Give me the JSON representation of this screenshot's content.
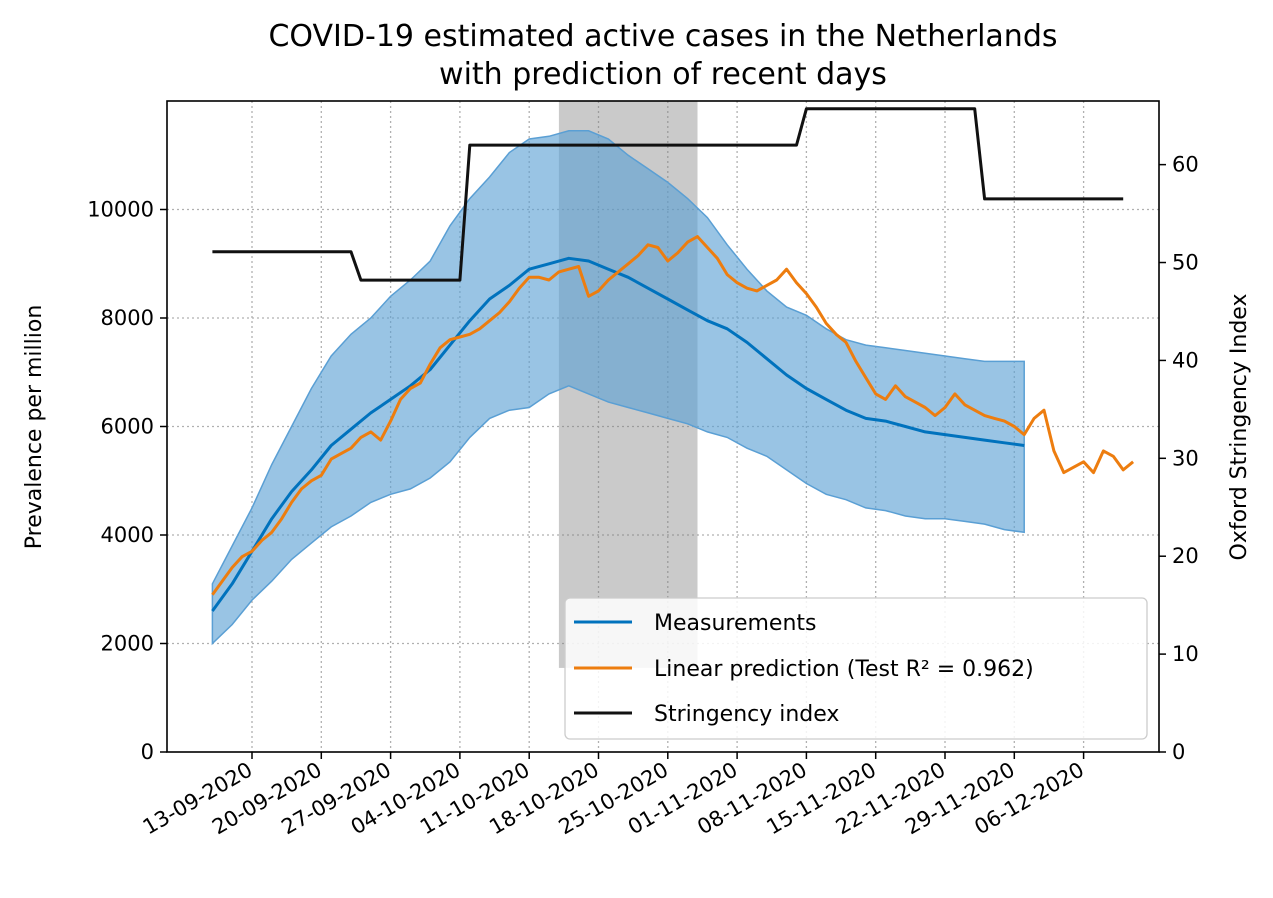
{
  "chart_data": {
    "type": "line",
    "title": "COVID-19 estimated active cases in the Netherlands",
    "subtitle": "with prediction of recent days",
    "ylabel": "Prevalence per million",
    "y2label": "Oxford Stringency Index",
    "xlabel": "",
    "ylim": [
      0,
      12000
    ],
    "y2lim": [
      0,
      66.5
    ],
    "yticks": [
      "0",
      "2000",
      "4000",
      "6000",
      "8000",
      "10000"
    ],
    "y2ticks": [
      "0",
      "10",
      "20",
      "30",
      "40",
      "50",
      "60"
    ],
    "xticks": [
      "13-09-2020",
      "20-09-2020",
      "27-09-2020",
      "04-10-2020",
      "11-10-2020",
      "18-10-2020",
      "25-10-2020",
      "01-11-2020",
      "08-11-2020",
      "15-11-2020",
      "22-11-2020",
      "29-11-2020",
      "06-12-2020"
    ],
    "grid": true,
    "legend_position": "lower-right",
    "shaded_period": {
      "start": "2020-10-14",
      "end": "2020-10-28",
      "color": "#808080"
    },
    "colors": {
      "measurements": "#0072bd",
      "band": "#5a9fd4",
      "prediction": "#ed7d0f",
      "stringency": "#111111"
    },
    "legend": [
      {
        "label": "Measurements",
        "color": "#0072bd"
      },
      {
        "label": "Linear prediction (Test R² = 0.962)",
        "color": "#ed7d0f"
      },
      {
        "label": "Stringency index",
        "color": "#111111"
      }
    ],
    "series": [
      {
        "name": "Measurements",
        "axis": "left",
        "x": [
          "2020-09-09",
          "2020-09-11",
          "2020-09-13",
          "2020-09-15",
          "2020-09-17",
          "2020-09-19",
          "2020-09-21",
          "2020-09-23",
          "2020-09-25",
          "2020-09-27",
          "2020-09-29",
          "2020-10-01",
          "2020-10-03",
          "2020-10-05",
          "2020-10-07",
          "2020-10-09",
          "2020-10-11",
          "2020-10-13",
          "2020-10-15",
          "2020-10-17",
          "2020-10-19",
          "2020-10-21",
          "2020-10-23",
          "2020-10-25",
          "2020-10-27",
          "2020-10-29",
          "2020-10-31",
          "2020-11-02",
          "2020-11-04",
          "2020-11-06",
          "2020-11-08",
          "2020-11-10",
          "2020-11-12",
          "2020-11-14",
          "2020-11-16",
          "2020-11-18",
          "2020-11-20",
          "2020-11-22",
          "2020-11-24",
          "2020-11-26",
          "2020-11-28",
          "2020-11-30"
        ],
        "values": [
          2600,
          3100,
          3700,
          4300,
          4800,
          5200,
          5650,
          5950,
          6250,
          6500,
          6750,
          7050,
          7500,
          7950,
          8350,
          8600,
          8900,
          9000,
          9100,
          9050,
          8900,
          8750,
          8550,
          8350,
          8150,
          7950,
          7800,
          7550,
          7250,
          6950,
          6700,
          6500,
          6300,
          6150,
          6100,
          6000,
          5900,
          5850,
          5800,
          5750,
          5700,
          5650
        ],
        "lower": [
          2000,
          2350,
          2800,
          3150,
          3550,
          3850,
          4150,
          4350,
          4600,
          4750,
          4850,
          5050,
          5350,
          5800,
          6150,
          6300,
          6350,
          6600,
          6750,
          6600,
          6450,
          6350,
          6250,
          6150,
          6050,
          5900,
          5800,
          5600,
          5450,
          5200,
          4950,
          4750,
          4650,
          4500,
          4450,
          4350,
          4300,
          4300,
          4250,
          4200,
          4100,
          4050
        ],
        "upper": [
          3100,
          3800,
          4500,
          5300,
          6000,
          6700,
          7300,
          7700,
          8000,
          8400,
          8700,
          9050,
          9700,
          10200,
          10600,
          11050,
          11300,
          11350,
          11450,
          11450,
          11300,
          11000,
          10750,
          10500,
          10200,
          9850,
          9350,
          8900,
          8500,
          8200,
          8050,
          7800,
          7600,
          7500,
          7450,
          7400,
          7350,
          7300,
          7250,
          7200,
          7200,
          7200
        ]
      },
      {
        "name": "Linear prediction (Test R² = 0.962)",
        "axis": "left",
        "x": [
          "2020-09-09",
          "2020-09-10",
          "2020-09-11",
          "2020-09-12",
          "2020-09-13",
          "2020-09-14",
          "2020-09-15",
          "2020-09-16",
          "2020-09-17",
          "2020-09-18",
          "2020-09-19",
          "2020-09-20",
          "2020-09-21",
          "2020-09-22",
          "2020-09-23",
          "2020-09-24",
          "2020-09-25",
          "2020-09-26",
          "2020-09-27",
          "2020-09-28",
          "2020-09-29",
          "2020-09-30",
          "2020-10-01",
          "2020-10-02",
          "2020-10-03",
          "2020-10-04",
          "2020-10-05",
          "2020-10-06",
          "2020-10-07",
          "2020-10-08",
          "2020-10-09",
          "2020-10-10",
          "2020-10-11",
          "2020-10-12",
          "2020-10-13",
          "2020-10-14",
          "2020-10-15",
          "2020-10-16",
          "2020-10-17",
          "2020-10-18",
          "2020-10-19",
          "2020-10-20",
          "2020-10-21",
          "2020-10-22",
          "2020-10-23",
          "2020-10-24",
          "2020-10-25",
          "2020-10-26",
          "2020-10-27",
          "2020-10-28",
          "2020-10-29",
          "2020-10-30",
          "2020-10-31",
          "2020-11-01",
          "2020-11-02",
          "2020-11-03",
          "2020-11-04",
          "2020-11-05",
          "2020-11-06",
          "2020-11-07",
          "2020-11-08",
          "2020-11-09",
          "2020-11-10",
          "2020-11-11",
          "2020-11-12",
          "2020-11-13",
          "2020-11-14",
          "2020-11-15",
          "2020-11-16",
          "2020-11-17",
          "2020-11-18",
          "2020-11-19",
          "2020-11-20",
          "2020-11-21",
          "2020-11-22",
          "2020-11-23",
          "2020-11-24",
          "2020-11-25",
          "2020-11-26",
          "2020-11-27",
          "2020-11-28",
          "2020-11-29",
          "2020-11-30",
          "2020-12-01",
          "2020-12-02",
          "2020-12-03",
          "2020-12-04",
          "2020-12-05",
          "2020-12-06",
          "2020-12-07",
          "2020-12-08",
          "2020-12-09",
          "2020-12-10",
          "2020-12-11"
        ],
        "values": [
          2900,
          3150,
          3400,
          3600,
          3700,
          3900,
          4050,
          4300,
          4600,
          4850,
          5000,
          5100,
          5400,
          5500,
          5600,
          5800,
          5900,
          5750,
          6100,
          6500,
          6700,
          6800,
          7150,
          7450,
          7600,
          7650,
          7700,
          7800,
          7950,
          8100,
          8300,
          8550,
          8750,
          8750,
          8700,
          8850,
          8900,
          8950,
          8400,
          8500,
          8700,
          8850,
          9000,
          9150,
          9350,
          9300,
          9050,
          9200,
          9400,
          9500,
          9300,
          9100,
          8800,
          8650,
          8550,
          8500,
          8600,
          8700,
          8900,
          8650,
          8450,
          8200,
          7900,
          7700,
          7550,
          7200,
          6900,
          6600,
          6500,
          6750,
          6550,
          6450,
          6350,
          6200,
          6350,
          6600,
          6400,
          6300,
          6200,
          6150,
          6100,
          6000,
          5850,
          6150,
          6300,
          5550,
          5150,
          5250,
          5350,
          5150,
          5550,
          5450,
          5200,
          5350
        ]
      },
      {
        "name": "Stringency index",
        "axis": "right",
        "x": [
          "2020-09-09",
          "2020-09-23",
          "2020-09-24",
          "2020-10-04",
          "2020-10-05",
          "2020-11-07",
          "2020-11-08",
          "2020-11-25",
          "2020-11-26",
          "2020-12-10"
        ],
        "values": [
          51.1,
          51.1,
          48.2,
          48.2,
          62.0,
          62.0,
          65.7,
          65.7,
          56.5,
          56.5
        ]
      }
    ]
  }
}
